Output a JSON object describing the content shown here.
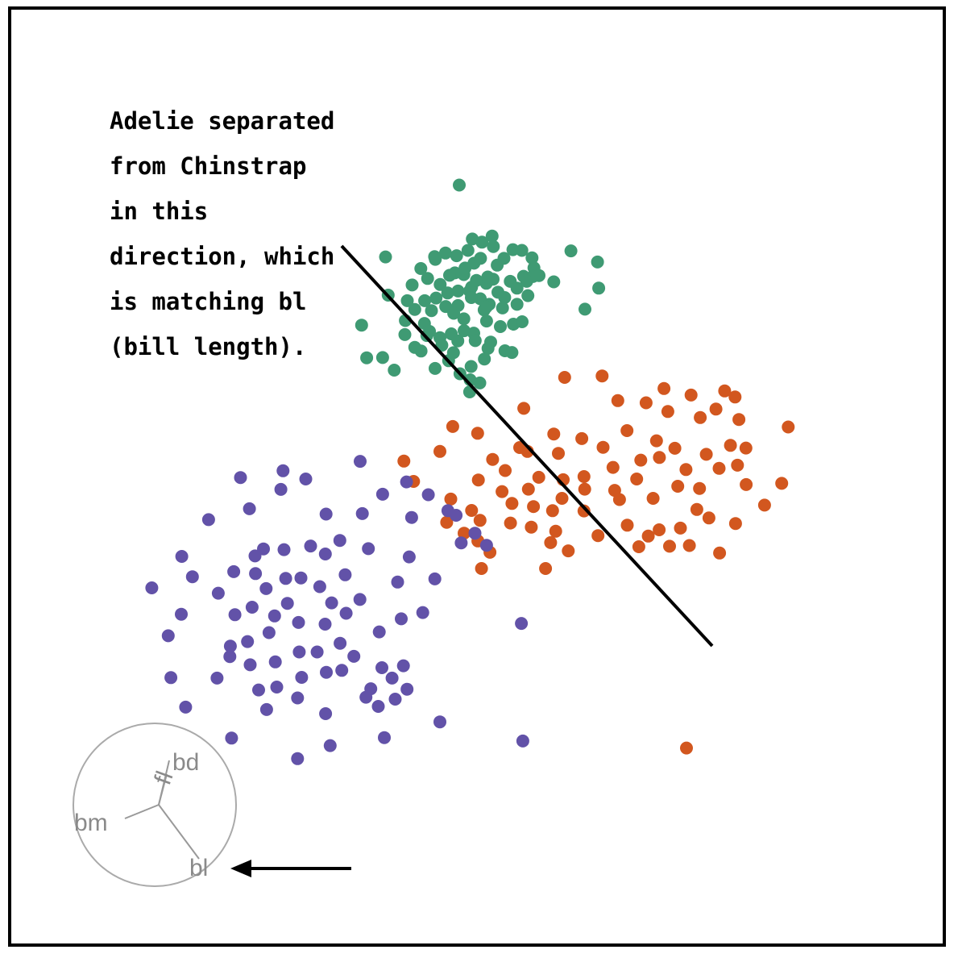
{
  "chart_data": {
    "type": "scatter",
    "title": "",
    "xlabel": "",
    "ylabel": "",
    "grid": false,
    "legend": "none",
    "colors": {
      "green": "#3f9a73",
      "orange": "#d2571f",
      "purple": "#6252a8"
    },
    "series": [
      {
        "color": "green",
        "points": [
          [
            0.56,
            -0.56
          ],
          [
            0.61,
            -0.99
          ],
          [
            0.77,
            -1.76
          ],
          [
            1.05,
            -1.48
          ],
          [
            1.42,
            -1.12
          ],
          [
            1.79,
            -1.15
          ],
          [
            2.21,
            -1.46
          ],
          [
            2.29,
            -1.87
          ],
          [
            2.25,
            -2.23
          ],
          [
            2.5,
            -2.19
          ],
          [
            1.86,
            -2.22
          ],
          [
            1.31,
            -2.43
          ],
          [
            0.6,
            -2.34
          ],
          [
            0.32,
            -2.51
          ],
          [
            0.8,
            -2.88
          ],
          [
            1.08,
            -3.1
          ],
          [
            1.59,
            -2.71
          ],
          [
            1.99,
            -2.43
          ],
          [
            2.04,
            -3.02
          ],
          [
            1.59,
            -3.38
          ],
          [
            0.99,
            -3.53
          ],
          [
            0.44,
            -3.38
          ],
          [
            0.23,
            -3.61
          ],
          [
            0.07,
            -3.15
          ],
          [
            -0.29,
            -2.67
          ],
          [
            -0.61,
            -2.15
          ],
          [
            -0.98,
            -2.08
          ],
          [
            -0.56,
            -1.88
          ],
          [
            -0.19,
            -1.68
          ],
          [
            0.08,
            -1.48
          ],
          [
            0.14,
            -0.81
          ],
          [
            -0.26,
            -0.68
          ],
          [
            -0.44,
            -1.15
          ],
          [
            -0.91,
            -1.37
          ],
          [
            -1.37,
            -1.26
          ],
          [
            -1.79,
            -1.52
          ],
          [
            -2.39,
            -1.9
          ],
          [
            -2.11,
            -2.31
          ],
          [
            -1.59,
            -2.56
          ],
          [
            -1.28,
            -2.91
          ],
          [
            -0.85,
            -2.83
          ],
          [
            -0.37,
            -2.83
          ],
          [
            -0.09,
            -2.39
          ],
          [
            0.38,
            -2.25
          ],
          [
            -0.3,
            -3.1
          ],
          [
            -0.85,
            -3.43
          ],
          [
            -1.36,
            -3.47
          ],
          [
            -1.95,
            -3.64
          ],
          [
            -2.23,
            -3.23
          ],
          [
            -1.76,
            -3.12
          ],
          [
            -1.03,
            -3.75
          ],
          [
            -0.61,
            -3.98
          ],
          [
            0.33,
            -4.07
          ],
          [
            0.9,
            -4.3
          ],
          [
            1.44,
            -4.2
          ],
          [
            -0.2,
            -4.57
          ],
          [
            -0.6,
            -4.47
          ],
          [
            -1.13,
            -4.6
          ],
          [
            -1.6,
            -4.76
          ],
          [
            -1.52,
            -5.07
          ],
          [
            -0.86,
            -4.89
          ],
          [
            -0.14,
            -4.88
          ],
          [
            0.39,
            -5.2
          ],
          [
            0.24,
            -5.64
          ],
          [
            -0.31,
            -5.95
          ],
          [
            -0.35,
            -6.5
          ],
          [
            -2.14,
            -4.67
          ],
          [
            -2.24,
            -4.17
          ],
          [
            -3.05,
            -4.63
          ],
          [
            -2.64,
            -5.16
          ],
          [
            -2.38,
            -5.31
          ],
          [
            -1.8,
            -6.03
          ],
          [
            -1.24,
            -5.71
          ],
          [
            -1.04,
            -5.38
          ],
          [
            -0.77,
            -6.25
          ],
          [
            -0.37,
            -7.0
          ],
          [
            0.05,
            -6.63
          ],
          [
            -3.03,
            -4.05
          ],
          [
            -2.64,
            -3.59
          ],
          [
            -2.95,
            -3.23
          ],
          [
            -2.75,
            -2.58
          ],
          [
            -3.85,
            -1.42
          ],
          [
            -3.74,
            -3.0
          ],
          [
            -4.84,
            -4.24
          ],
          [
            -3.97,
            -5.58
          ],
          [
            -4.63,
            -5.59
          ],
          [
            -3.49,
            -6.1
          ],
          [
            1.09,
            -5.3
          ],
          [
            1.38,
            -5.37
          ],
          [
            1.8,
            -4.1
          ],
          [
            -0.8,
            1.55
          ],
          [
            3.82,
            -1.17
          ],
          [
            4.92,
            -1.63
          ],
          [
            4.97,
            -2.71
          ],
          [
            4.4,
            -3.58
          ],
          [
            3.11,
            -2.45
          ],
          [
            -1.82,
            -1.41
          ],
          [
            0.32,
            -3.49
          ],
          [
            -1.2,
            -2.18
          ],
          [
            -2.03,
            -4.5
          ],
          [
            0.5,
            -4.94
          ]
        ]
      },
      {
        "color": "orange",
        "points": [
          [
            5.76,
            -7.36
          ],
          [
            7.67,
            -6.86
          ],
          [
            7.83,
            -7.81
          ],
          [
            9.17,
            -8.06
          ],
          [
            8.79,
            -7.13
          ],
          [
            10.18,
            -6.96
          ],
          [
            10.77,
            -8.14
          ],
          [
            10.42,
            -9.21
          ],
          [
            10.71,
            -10.03
          ],
          [
            11.07,
            -10.83
          ],
          [
            9.95,
            -10.16
          ],
          [
            9.42,
            -9.58
          ],
          [
            8.12,
            -9.33
          ],
          [
            8.58,
            -10.21
          ],
          [
            9.14,
            -10.99
          ],
          [
            9.03,
            -11.86
          ],
          [
            8.35,
            -12.63
          ],
          [
            7.22,
            -11.4
          ],
          [
            6.54,
            -10.6
          ],
          [
            6.71,
            -9.82
          ],
          [
            7.48,
            -9.71
          ],
          [
            5.15,
            -9.29
          ],
          [
            4.27,
            -8.93
          ],
          [
            3.11,
            -8.74
          ],
          [
            1.7,
            -9.3
          ],
          [
            1.1,
            -10.25
          ],
          [
            0.97,
            -11.12
          ],
          [
            1.32,
            -12.42
          ],
          [
            2.18,
            -12.59
          ],
          [
            3.19,
            -12.76
          ],
          [
            4.36,
            -11.92
          ],
          [
            5.63,
            -11.07
          ],
          [
            5.56,
            -10.12
          ],
          [
            4.36,
            -10.5
          ],
          [
            3.5,
            -10.63
          ],
          [
            2.49,
            -10.53
          ],
          [
            2.06,
            -11.02
          ],
          [
            2.27,
            -11.74
          ],
          [
            3.06,
            -11.91
          ],
          [
            3.45,
            -11.4
          ],
          [
            6.15,
            -12.51
          ],
          [
            7.02,
            -12.96
          ],
          [
            7.9,
            -13.38
          ],
          [
            8.72,
            -13.35
          ],
          [
            7.47,
            -12.7
          ],
          [
            5.83,
            -11.45
          ],
          [
            4.94,
            -12.94
          ],
          [
            -3.09,
            -9.86
          ],
          [
            -2.69,
            -10.7
          ],
          [
            -1.6,
            -9.46
          ],
          [
            -1.07,
            -8.43
          ],
          [
            -0.04,
            -8.71
          ],
          [
            0.58,
            -9.79
          ],
          [
            -0.01,
            -10.64
          ],
          [
            -0.29,
            -11.9
          ],
          [
            -0.6,
            -12.84
          ],
          [
            -1.32,
            -12.39
          ],
          [
            0.12,
            -14.3
          ],
          [
            -0.03,
            -13.16
          ],
          [
            2.77,
            -14.3
          ],
          [
            3.71,
            -13.57
          ],
          [
            6.63,
            -13.4
          ],
          [
            9.97,
            -13.66
          ],
          [
            10.63,
            -12.44
          ],
          [
            11.83,
            -11.68
          ],
          [
            12.54,
            -10.78
          ],
          [
            12.81,
            -8.45
          ],
          [
            10.61,
            -7.21
          ],
          [
            3.56,
            -6.4
          ],
          [
            1.87,
            -7.68
          ],
          [
            3.3,
            -9.54
          ],
          [
            6.14,
            -8.6
          ],
          [
            6.93,
            -7.45
          ],
          [
            8.24,
            -10.9
          ],
          [
            9.53,
            -12.21
          ],
          [
            5.11,
            -6.34
          ],
          [
            4.39,
            -11.02
          ],
          [
            11.06,
            -9.32
          ],
          [
            1.38,
            -11.61
          ],
          [
            2.02,
            -9.46
          ],
          [
            -1.15,
            -11.43
          ],
          [
            7.36,
            -9.02
          ],
          [
            9.82,
            -7.71
          ],
          [
            2.98,
            -13.23
          ],
          [
            0.47,
            -13.63
          ],
          [
            0.06,
            -12.31
          ],
          [
            8.6,
            -21.72
          ]
        ]
      },
      {
        "color": "purple",
        "points": [
          [
            -8.18,
            -11.03
          ],
          [
            -6.31,
            -12.05
          ],
          [
            -5.74,
            -13.14
          ],
          [
            -6.34,
            -13.7
          ],
          [
            -6.95,
            -13.37
          ],
          [
            -8.05,
            -13.52
          ],
          [
            -8.9,
            -13.49
          ],
          [
            -9.23,
            -14.51
          ],
          [
            -10.13,
            -14.43
          ],
          [
            -10.77,
            -15.32
          ],
          [
            -10.08,
            -16.21
          ],
          [
            -9.37,
            -15.9
          ],
          [
            -8.79,
            -15.13
          ],
          [
            -7.98,
            -14.71
          ],
          [
            -7.35,
            -14.69
          ],
          [
            -6.57,
            -15.05
          ],
          [
            -5.52,
            -14.56
          ],
          [
            -4.91,
            -15.58
          ],
          [
            -5.48,
            -16.15
          ],
          [
            -6.08,
            -15.72
          ],
          [
            -6.35,
            -16.6
          ],
          [
            -7.45,
            -16.53
          ],
          [
            -7.91,
            -15.74
          ],
          [
            -8.44,
            -16.26
          ],
          [
            -8.67,
            -16.95
          ],
          [
            -9.56,
            -17.32
          ],
          [
            -10.27,
            -17.51
          ],
          [
            -10.29,
            -17.94
          ],
          [
            -9.45,
            -18.28
          ],
          [
            -8.41,
            -18.16
          ],
          [
            -7.42,
            -17.75
          ],
          [
            -6.68,
            -17.75
          ],
          [
            -5.73,
            -17.39
          ],
          [
            -5.16,
            -17.93
          ],
          [
            -5.66,
            -18.51
          ],
          [
            -6.3,
            -18.59
          ],
          [
            -7.32,
            -18.8
          ],
          [
            -8.35,
            -19.2
          ],
          [
            -9.1,
            -19.32
          ],
          [
            -8.77,
            -20.13
          ],
          [
            -7.49,
            -19.65
          ],
          [
            -4.66,
            -19.62
          ],
          [
            -4.15,
            -20.0
          ],
          [
            -3.45,
            -19.7
          ],
          [
            -3.58,
            -18.83
          ],
          [
            -3.11,
            -18.32
          ],
          [
            -2.96,
            -19.29
          ],
          [
            -4.0,
            -18.4
          ],
          [
            -4.11,
            -16.92
          ],
          [
            -3.2,
            -16.38
          ],
          [
            -3.35,
            -14.86
          ],
          [
            -4.56,
            -13.48
          ],
          [
            -4.81,
            -12.03
          ],
          [
            -3.97,
            -11.23
          ],
          [
            -2.77,
            -12.19
          ],
          [
            -2.87,
            -13.82
          ],
          [
            -1.81,
            -14.73
          ],
          [
            -0.72,
            -13.24
          ],
          [
            0.33,
            -13.34
          ],
          [
            -0.15,
            -12.84
          ],
          [
            -1.27,
            -11.91
          ],
          [
            -2.08,
            -11.25
          ],
          [
            -2.98,
            -10.72
          ],
          [
            -8.09,
            -10.26
          ],
          [
            -9.85,
            -10.54
          ],
          [
            -11.17,
            -12.28
          ],
          [
            -12.28,
            -13.8
          ],
          [
            -13.52,
            -15.1
          ],
          [
            -12.3,
            -16.19
          ],
          [
            -12.84,
            -17.08
          ],
          [
            -12.73,
            -18.81
          ],
          [
            -12.12,
            -20.03
          ],
          [
            -10.22,
            -21.31
          ],
          [
            -7.49,
            -22.16
          ],
          [
            -6.14,
            -21.62
          ],
          [
            -3.9,
            -21.29
          ],
          [
            -1.6,
            -20.64
          ],
          [
            1.77,
            -16.57
          ],
          [
            1.83,
            -21.43
          ],
          [
            -0.93,
            -12.1
          ],
          [
            -4.9,
            -9.87
          ],
          [
            -7.15,
            -10.6
          ],
          [
            -9.48,
            -11.83
          ],
          [
            -9.25,
            -13.78
          ],
          [
            -11.84,
            -14.64
          ],
          [
            -10.82,
            -18.83
          ],
          [
            -6.33,
            -20.3
          ],
          [
            -4.46,
            -19.27
          ],
          [
            -2.31,
            -16.12
          ]
        ]
      }
    ],
    "annotation": {
      "lines": [
        "Adelie separated",
        "from Chinstrap",
        "in this",
        "direction, which",
        "is matching bl",
        "(bill length)."
      ]
    },
    "axes_glyph": {
      "labels": [
        "bd",
        "fl",
        "bm",
        "bl"
      ]
    }
  }
}
